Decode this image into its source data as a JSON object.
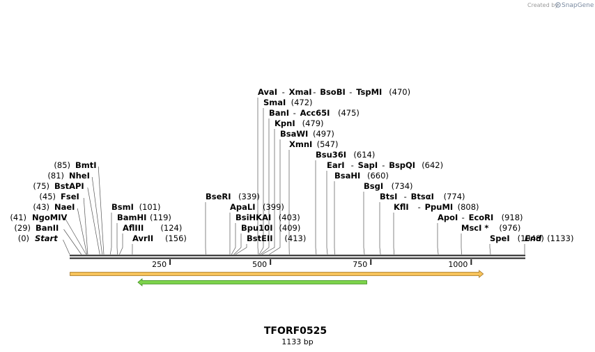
{
  "credit": {
    "prefix": "Created by",
    "brand": "SnapGene"
  },
  "map": {
    "name": "TFORF0525",
    "length_label": "1133 bp",
    "length": 1133
  },
  "ticks": [
    {
      "value": 250,
      "label": "250"
    },
    {
      "value": 500,
      "label": "500"
    },
    {
      "value": 750,
      "label": "750"
    },
    {
      "value": 1000,
      "label": "1000"
    }
  ],
  "features": [
    {
      "name": "orange-feature",
      "start": 1,
      "end": 1030,
      "direction": "forward",
      "color": "#f7c35b",
      "edge": "#a07020"
    },
    {
      "name": "green-feature",
      "start": 170,
      "end": 740,
      "direction": "reverse",
      "color": "#7dd34b",
      "edge": "#3a8a1a"
    }
  ],
  "sites": [
    {
      "names": [
        "Start"
      ],
      "position": 0,
      "pos_label": "(0)",
      "italic": true,
      "side": "left",
      "row": 0
    },
    {
      "names": [
        "BanII"
      ],
      "position": 29,
      "pos_label": "(29)",
      "side": "left",
      "row": 1
    },
    {
      "names": [
        "NgoMIV"
      ],
      "position": 41,
      "pos_label": "(41)",
      "side": "left",
      "row": 2
    },
    {
      "names": [
        "NaeI"
      ],
      "position": 43,
      "pos_label": "(43)",
      "side": "left",
      "row": 3
    },
    {
      "names": [
        "FseI"
      ],
      "position": 45,
      "pos_label": "(45)",
      "side": "left",
      "row": 4
    },
    {
      "names": [
        "BstAPI"
      ],
      "position": 75,
      "pos_label": "(75)",
      "side": "left",
      "row": 5
    },
    {
      "names": [
        "NheI"
      ],
      "position": 81,
      "pos_label": "(81)",
      "side": "left",
      "row": 6
    },
    {
      "names": [
        "BmtI"
      ],
      "position": 85,
      "pos_label": "(85)",
      "side": "left",
      "row": 7
    },
    {
      "names": [
        "AvrII"
      ],
      "position": 156,
      "pos_label": "(156)",
      "side": "right",
      "row": 0
    },
    {
      "names": [
        "AflIII"
      ],
      "position": 124,
      "pos_label": "(124)",
      "side": "right",
      "row": 1
    },
    {
      "names": [
        "BamHI"
      ],
      "position": 119,
      "pos_label": "(119)",
      "side": "right",
      "row": 2
    },
    {
      "names": [
        "BsmI"
      ],
      "position": 101,
      "pos_label": "(101)",
      "side": "right",
      "row": 3
    },
    {
      "names": [
        "BseRI"
      ],
      "position": 339,
      "pos_label": "(339)",
      "side": "right",
      "row": 4
    },
    {
      "names": [
        "BstEII"
      ],
      "position": 413,
      "pos_label": "(413)",
      "side": "right",
      "row": 0
    },
    {
      "names": [
        "Bpu10I"
      ],
      "position": 409,
      "pos_label": "(409)",
      "side": "right",
      "row": 1
    },
    {
      "names": [
        "BsiHKAI"
      ],
      "position": 403,
      "pos_label": "(403)",
      "side": "right",
      "row": 2
    },
    {
      "names": [
        "ApaLI"
      ],
      "position": 399,
      "pos_label": "(399)",
      "side": "right",
      "row": 3
    },
    {
      "names": [
        "AvaI",
        "XmaI",
        "BsoBI",
        "TspMI"
      ],
      "position": 470,
      "pos_label": "(470)",
      "side": "right",
      "row": 14
    },
    {
      "names": [
        "SmaI"
      ],
      "position": 472,
      "pos_label": "(472)",
      "side": "right",
      "row": 13
    },
    {
      "names": [
        "BanI",
        "Acc65I"
      ],
      "position": 475,
      "pos_label": "(475)",
      "side": "right",
      "row": 12
    },
    {
      "names": [
        "KpnI"
      ],
      "position": 479,
      "pos_label": "(479)",
      "side": "right",
      "row": 11
    },
    {
      "names": [
        "BsaWI"
      ],
      "position": 497,
      "pos_label": "(497)",
      "side": "right",
      "row": 10
    },
    {
      "names": [
        "XmnI"
      ],
      "position": 547,
      "pos_label": "(547)",
      "side": "right",
      "row": 9
    },
    {
      "names": [
        "Bsu36I"
      ],
      "position": 614,
      "pos_label": "(614)",
      "side": "right",
      "row": 8
    },
    {
      "names": [
        "EarI",
        "SapI",
        "BspQI"
      ],
      "position": 642,
      "pos_label": "(642)",
      "side": "right",
      "row": 7
    },
    {
      "names": [
        "BsaHI"
      ],
      "position": 660,
      "pos_label": "(660)",
      "side": "right",
      "row": 6
    },
    {
      "names": [
        "BsgI"
      ],
      "position": 734,
      "pos_label": "(734)",
      "side": "right",
      "row": 5
    },
    {
      "names": [
        "BtsI",
        "BtsαI"
      ],
      "position": 774,
      "pos_label": "(774)",
      "side": "right",
      "row": 4
    },
    {
      "names": [
        "KflI",
        "PpuMI"
      ],
      "position": 808,
      "pos_label": "(808)",
      "side": "right",
      "row": 3
    },
    {
      "names": [
        "ApoI",
        "EcoRI"
      ],
      "position": 918,
      "pos_label": "(918)",
      "side": "right",
      "row": 2
    },
    {
      "names": [
        "MscI *"
      ],
      "position": 976,
      "pos_label": "(976)",
      "side": "right",
      "row": 1
    },
    {
      "names": [
        "SpeI"
      ],
      "position": 1048,
      "pos_label": "(1048)",
      "side": "right",
      "row": 0
    },
    {
      "names": [
        "End"
      ],
      "position": 1133,
      "pos_label": "(1133)",
      "italic": true,
      "side": "right",
      "row": 0
    }
  ]
}
